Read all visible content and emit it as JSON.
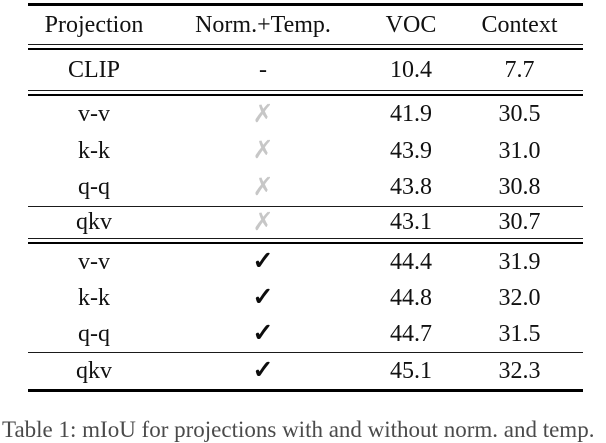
{
  "table": {
    "headers": {
      "projection": "Projection",
      "norm_temp": "Norm.+Temp.",
      "voc": "VOC",
      "context": "Context"
    },
    "rows": [
      {
        "projection": "CLIP",
        "mark": "-",
        "voc": "10.4",
        "context": "7.7"
      },
      {
        "projection": "v-v",
        "mark": "✗",
        "voc": "41.9",
        "context": "30.5"
      },
      {
        "projection": "k-k",
        "mark": "✗",
        "voc": "43.9",
        "context": "31.0"
      },
      {
        "projection": "q-q",
        "mark": "✗",
        "voc": "43.8",
        "context": "30.8"
      },
      {
        "projection": "qkv",
        "mark": "✗",
        "voc": "43.1",
        "context": "30.7"
      },
      {
        "projection": "v-v",
        "mark": "✓",
        "voc": "44.4",
        "context": "31.9"
      },
      {
        "projection": "k-k",
        "mark": "✓",
        "voc": "44.8",
        "context": "32.0"
      },
      {
        "projection": "q-q",
        "mark": "✓",
        "voc": "44.7",
        "context": "31.5"
      },
      {
        "projection": "qkv",
        "mark": "✓",
        "voc": "45.1",
        "context": "32.3"
      }
    ]
  },
  "caption_fragment": "Table 1: mIoU for projections with and without norm. and temp.",
  "colors": {
    "cross_gray": "#c7c7c7",
    "ink": "#111111",
    "rule_black": "#000000"
  }
}
